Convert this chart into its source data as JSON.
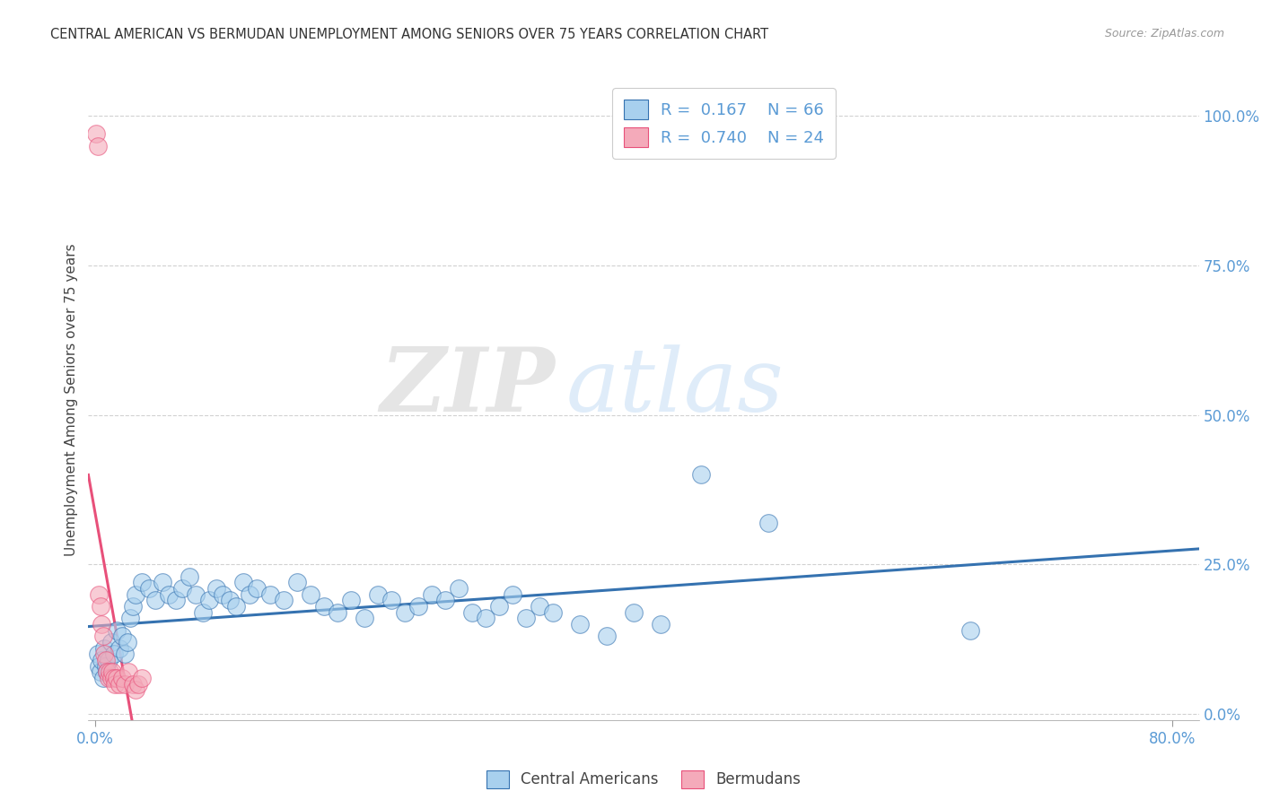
{
  "title": "CENTRAL AMERICAN VS BERMUDAN UNEMPLOYMENT AMONG SENIORS OVER 75 YEARS CORRELATION CHART",
  "source": "Source: ZipAtlas.com",
  "ylabel": "Unemployment Among Seniors over 75 years",
  "xlim": [
    -0.005,
    0.82
  ],
  "ylim": [
    -0.01,
    1.06
  ],
  "yticks": [
    0.0,
    0.25,
    0.5,
    0.75,
    1.0
  ],
  "ytick_labels": [
    "0.0%",
    "25.0%",
    "50.0%",
    "75.0%",
    "100.0%"
  ],
  "xticks": [
    0.0,
    0.8
  ],
  "xtick_labels": [
    "0.0%",
    "80.0%"
  ],
  "watermark_zip": "ZIP",
  "watermark_atlas": "atlas",
  "blue_color": "#A8D0EE",
  "pink_color": "#F4AABA",
  "blue_line_color": "#3572B0",
  "pink_line_color": "#E8507A",
  "blue_tick_color": "#5B9BD5",
  "R_blue": 0.167,
  "N_blue": 66,
  "R_pink": 0.74,
  "N_pink": 24,
  "blue_scatter_x": [
    0.002,
    0.003,
    0.004,
    0.005,
    0.006,
    0.007,
    0.008,
    0.009,
    0.01,
    0.012,
    0.014,
    0.016,
    0.018,
    0.02,
    0.022,
    0.024,
    0.026,
    0.028,
    0.03,
    0.035,
    0.04,
    0.045,
    0.05,
    0.055,
    0.06,
    0.065,
    0.07,
    0.075,
    0.08,
    0.085,
    0.09,
    0.095,
    0.1,
    0.105,
    0.11,
    0.115,
    0.12,
    0.13,
    0.14,
    0.15,
    0.16,
    0.17,
    0.18,
    0.19,
    0.2,
    0.21,
    0.22,
    0.23,
    0.24,
    0.25,
    0.26,
    0.27,
    0.28,
    0.29,
    0.3,
    0.31,
    0.32,
    0.33,
    0.34,
    0.36,
    0.38,
    0.4,
    0.42,
    0.45,
    0.5,
    0.65
  ],
  "blue_scatter_y": [
    0.1,
    0.08,
    0.07,
    0.09,
    0.06,
    0.11,
    0.08,
    0.07,
    0.09,
    0.12,
    0.1,
    0.14,
    0.11,
    0.13,
    0.1,
    0.12,
    0.16,
    0.18,
    0.2,
    0.22,
    0.21,
    0.19,
    0.22,
    0.2,
    0.19,
    0.21,
    0.23,
    0.2,
    0.17,
    0.19,
    0.21,
    0.2,
    0.19,
    0.18,
    0.22,
    0.2,
    0.21,
    0.2,
    0.19,
    0.22,
    0.2,
    0.18,
    0.17,
    0.19,
    0.16,
    0.2,
    0.19,
    0.17,
    0.18,
    0.2,
    0.19,
    0.21,
    0.17,
    0.16,
    0.18,
    0.2,
    0.16,
    0.18,
    0.17,
    0.15,
    0.13,
    0.17,
    0.15,
    0.4,
    0.32,
    0.14
  ],
  "pink_scatter_x": [
    0.001,
    0.002,
    0.003,
    0.004,
    0.005,
    0.006,
    0.007,
    0.008,
    0.009,
    0.01,
    0.011,
    0.012,
    0.013,
    0.014,
    0.015,
    0.016,
    0.018,
    0.02,
    0.022,
    0.025,
    0.028,
    0.03,
    0.032,
    0.035
  ],
  "pink_scatter_y": [
    0.97,
    0.95,
    0.2,
    0.18,
    0.15,
    0.13,
    0.1,
    0.09,
    0.07,
    0.06,
    0.07,
    0.06,
    0.07,
    0.06,
    0.05,
    0.06,
    0.05,
    0.06,
    0.05,
    0.07,
    0.05,
    0.04,
    0.05,
    0.06
  ],
  "background_color": "#ffffff",
  "grid_color": "#cccccc"
}
